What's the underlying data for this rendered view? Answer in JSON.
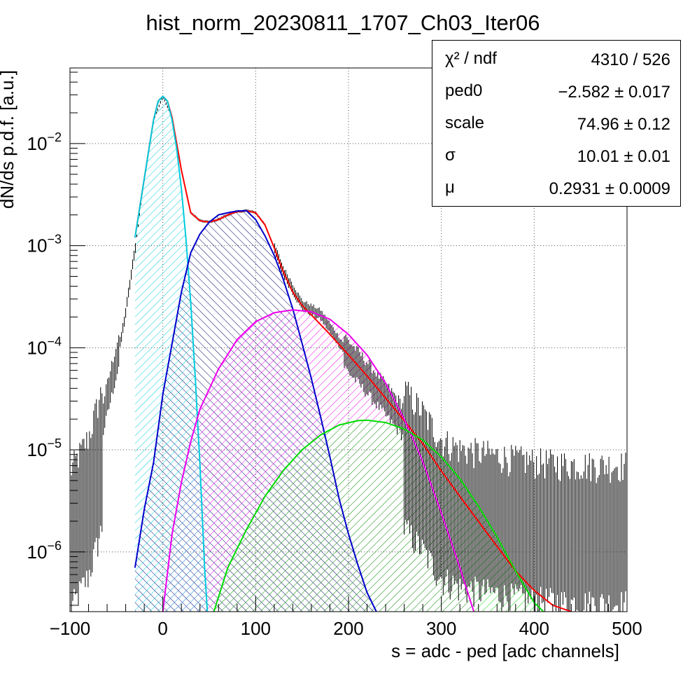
{
  "chart_data": {
    "type": "line",
    "title": "hist_norm_20230811_1707_Ch03_Iter06",
    "xlabel": "s = adc - ped [adc channels]",
    "ylabel": "dN/ds p.d.f. [a.u.]",
    "xlim": [
      -100,
      500
    ],
    "ylim": [
      2.6e-07,
      0.055
    ],
    "yscale": "log",
    "grid": true,
    "x_ticks": [
      -100,
      0,
      100,
      200,
      300,
      400,
      500
    ],
    "x_tick_labels": [
      "−100",
      "0",
      "100",
      "200",
      "300",
      "400",
      "500"
    ],
    "y_ticks": [
      1e-06,
      1e-05,
      0.0001,
      0.001,
      0.01
    ],
    "y_tick_labels": [
      {
        "base": "10",
        "exp": "−6"
      },
      {
        "base": "10",
        "exp": "−5"
      },
      {
        "base": "10",
        "exp": "−4"
      },
      {
        "base": "10",
        "exp": "−3"
      },
      {
        "base": "10",
        "exp": "−2"
      }
    ],
    "series": [
      {
        "role": "total-fit",
        "color": "#ff0000",
        "hatched": false,
        "x": [
          -30,
          -20,
          -10,
          -5,
          0,
          5,
          10,
          20,
          30,
          40,
          50,
          60,
          70,
          80,
          90,
          100,
          110,
          120,
          130,
          140,
          150,
          160,
          180,
          200,
          220,
          250,
          280,
          300,
          320,
          350,
          380,
          400,
          420,
          440
        ],
        "y": [
          0.0012,
          0.0045,
          0.017,
          0.026,
          0.029,
          0.026,
          0.018,
          0.0055,
          0.0021,
          0.00175,
          0.0017,
          0.0018,
          0.002,
          0.00215,
          0.0022,
          0.0021,
          0.0016,
          0.00095,
          0.00055,
          0.00035,
          0.00026,
          0.00021,
          0.000135,
          8.5e-05,
          5.3e-05,
          2.5e-05,
          1.15e-05,
          6.2e-06,
          3.5e-06,
          1.5e-06,
          6.5e-07,
          4.2e-07,
          3e-07,
          2.6e-07
        ]
      },
      {
        "role": "pedestal-component",
        "color": "#00ccdd",
        "hatched": true,
        "x": [
          -30,
          -20,
          -15,
          -10,
          -5,
          0,
          5,
          10,
          15,
          20,
          25,
          30,
          35,
          40,
          45,
          48
        ],
        "y": [
          0.0012,
          0.0045,
          0.0088,
          0.017,
          0.026,
          0.029,
          0.026,
          0.017,
          0.0088,
          0.0036,
          0.00115,
          0.00028,
          5e-05,
          7.2e-06,
          7e-07,
          2.6e-07
        ]
      },
      {
        "role": "1-pe-component",
        "color": "#0000cc",
        "hatched": true,
        "x": [
          -30,
          -20,
          -10,
          0,
          10,
          20,
          30,
          40,
          50,
          60,
          70,
          80,
          90,
          100,
          110,
          120,
          130,
          140,
          150,
          160,
          170,
          180,
          190,
          200,
          210,
          220,
          230
        ],
        "y": [
          7e-07,
          2.6e-06,
          7.5e-06,
          3.5e-05,
          0.00011,
          0.00035,
          0.00085,
          0.0013,
          0.0017,
          0.002,
          0.0021,
          0.00218,
          0.0022,
          0.0018,
          0.00125,
          0.0008,
          0.00046,
          0.00024,
          0.00011,
          5e-05,
          2.1e-05,
          8.5e-06,
          3.3e-06,
          1.5e-06,
          7.5e-07,
          4e-07,
          2.6e-07
        ]
      },
      {
        "role": "2-pe-component",
        "color": "#ee00ee",
        "hatched": true,
        "x": [
          0,
          10,
          20,
          30,
          40,
          60,
          80,
          100,
          120,
          140,
          160,
          180,
          200,
          220,
          240,
          260,
          280,
          300,
          320,
          335
        ],
        "y": [
          2.6e-07,
          1.5e-06,
          4.8e-06,
          1.2e-05,
          2.5e-05,
          6.2e-05,
          0.00012,
          0.00018,
          0.00022,
          0.000235,
          0.000225,
          0.00019,
          0.000135,
          8.5e-05,
          4.5e-05,
          2e-05,
          7.7e-06,
          2.4e-06,
          7e-07,
          2.6e-07
        ]
      },
      {
        "role": "3-pe-component",
        "color": "#00dd00",
        "hatched": true,
        "x": [
          55,
          70,
          90,
          110,
          130,
          150,
          170,
          190,
          210,
          220,
          240,
          260,
          280,
          300,
          320,
          340,
          360,
          380,
          400,
          410
        ],
        "y": [
          2.6e-07,
          7e-07,
          1.65e-06,
          3.5e-06,
          6.3e-06,
          1e-05,
          1.4e-05,
          1.75e-05,
          1.93e-05,
          1.95e-05,
          1.85e-05,
          1.6e-05,
          1.25e-05,
          8.5e-06,
          5.2e-06,
          2.8e-06,
          1.4e-06,
          6.5e-07,
          3.2e-07,
          2.6e-07
        ]
      }
    ],
    "data_envelope": {
      "x": [
        -100,
        -80,
        -65,
        -55,
        -45,
        -40,
        -35,
        -30,
        -20,
        -10,
        0,
        10,
        20,
        30,
        40,
        50,
        60,
        70,
        80,
        90,
        100,
        110,
        120,
        130,
        150,
        170,
        200,
        220,
        250,
        280,
        300,
        320,
        350,
        380,
        400,
        430,
        460,
        500
      ],
      "y": [
        3e-06,
        6.5e-06,
        2e-05,
        5e-05,
        0.00012,
        0.00022,
        0.00045,
        0.0009,
        0.0045,
        0.017,
        0.029,
        0.018,
        0.0055,
        0.0021,
        0.00175,
        0.0017,
        0.0018,
        0.002,
        0.00215,
        0.0022,
        0.0021,
        0.0016,
        0.00095,
        0.00055,
        0.00026,
        0.00021,
        8.5e-05,
        5.3e-05,
        2.5e-05,
        1.15e-05,
        6.2e-06,
        5e-06,
        4.5e-06,
        4e-06,
        3.8e-06,
        3.6e-06,
        3.5e-06,
        3.5e-06
      ]
    },
    "stats_box": [
      {
        "name": "χ² / ndf",
        "value": "4310 / 526"
      },
      {
        "name": "ped0",
        "value": "−2.582 ± 0.017"
      },
      {
        "name": "scale",
        "value": "74.96 ± 0.12"
      },
      {
        "name": "σ",
        "value": "10.01 ± 0.01"
      },
      {
        "name": "μ",
        "value": "0.2931 ± 0.0009"
      }
    ]
  }
}
